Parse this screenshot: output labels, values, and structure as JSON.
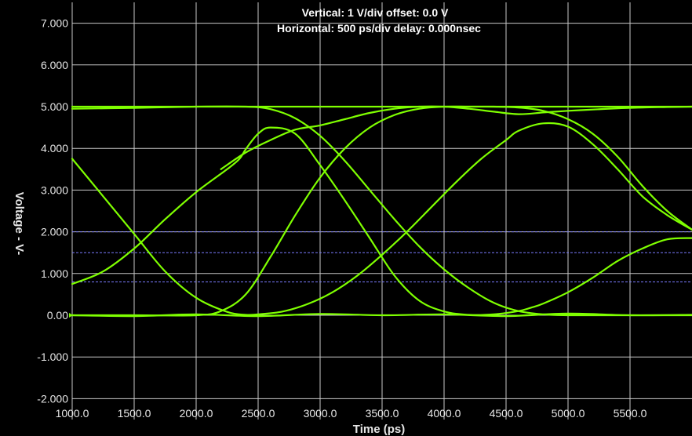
{
  "chart_data": {
    "type": "line",
    "title_lines": [
      "Vertical: 1  V/div  offset: 0.0 V",
      "Horizontal: 500 ps/div  delay: 0.000nsec"
    ],
    "xlabel": "Time  (ps)",
    "ylabel": "Voltage  -  V-",
    "xlim": [
      1000,
      6000
    ],
    "ylim": [
      -2.5,
      7.5
    ],
    "x_ticks": [
      1000,
      1500,
      2000,
      2500,
      3000,
      3500,
      4000,
      4500,
      5000,
      5500
    ],
    "x_tick_labels": [
      "1000.0",
      "1500.0",
      "2000.0",
      "2500.0",
      "3000.0",
      "3500.0",
      "4000.0",
      "4500.0",
      "5000.0",
      "5500.0"
    ],
    "y_ticks": [
      7,
      6,
      5,
      4,
      3,
      2,
      1,
      0,
      -1,
      -2
    ],
    "y_tick_labels": [
      "7.000",
      "6.000",
      "5.000",
      "4.000",
      "3.000",
      "2.000",
      "1.000",
      "0.00",
      "-1.000",
      "-2.000"
    ],
    "grid": true,
    "threshold_levels": [
      2.0,
      1.5,
      0.8
    ],
    "colors": {
      "trace": "#7fff00",
      "grid": "#c8c8c8",
      "threshold": "#7b7bff",
      "background": "#000000"
    },
    "series": [
      {
        "x": [
          1000,
          1250,
          1500,
          1750,
          2000,
          2250,
          2400,
          2500,
          2700,
          2900,
          3100,
          3300,
          3500,
          3700,
          3900,
          4100,
          4300,
          4500,
          4600,
          4800,
          5000,
          5200,
          5400,
          5600,
          5800,
          6000
        ],
        "y": [
          3.75,
          2.85,
          1.95,
          1.05,
          0.42,
          0.08,
          0.01,
          0.02,
          0.09,
          0.27,
          0.55,
          0.95,
          1.45,
          2.0,
          2.6,
          3.2,
          3.75,
          4.2,
          4.42,
          4.6,
          4.52,
          4.1,
          3.5,
          2.85,
          2.4,
          2.05
        ]
      },
      {
        "x": [
          1000,
          1250,
          1500,
          1750,
          2000,
          2250,
          2350,
          2400,
          2500,
          2600,
          2800,
          3000,
          3200,
          3400,
          3600,
          3800,
          4000,
          4200,
          4400,
          4600,
          4700,
          4800,
          5000,
          5200,
          5400,
          5600,
          5800,
          6000
        ],
        "y": [
          0.75,
          1.05,
          1.6,
          2.3,
          2.95,
          3.5,
          3.75,
          3.98,
          4.35,
          4.5,
          4.35,
          3.6,
          2.75,
          1.85,
          0.95,
          0.35,
          0.09,
          0.01,
          0.02,
          0.1,
          0.18,
          0.28,
          0.55,
          0.9,
          1.3,
          1.6,
          1.82,
          1.85
        ]
      },
      {
        "x": [
          1000,
          1500,
          2000,
          2400,
          2600,
          2800,
          3000,
          3200,
          3400,
          3600,
          3800,
          4000,
          4200,
          4400,
          4600,
          4800,
          5000,
          5200,
          5400,
          5600,
          5800,
          6000
        ],
        "y": [
          4.95,
          4.97,
          5.0,
          5.0,
          4.94,
          4.72,
          4.3,
          3.7,
          3.0,
          2.3,
          1.65,
          1.1,
          0.65,
          0.3,
          0.1,
          0.02,
          0.0,
          0.0,
          0.0,
          0.0,
          0.0,
          0.0
        ]
      },
      {
        "x": [
          1000,
          1500,
          2000,
          2200,
          2400,
          2600,
          2800,
          3000,
          3200,
          3400,
          3600,
          3800,
          4000,
          4200,
          4400,
          4600,
          4800,
          5000,
          5200,
          5400,
          5600,
          5800,
          6000
        ],
        "y": [
          0.0,
          0.0,
          0.0,
          0.1,
          0.5,
          1.4,
          2.4,
          3.3,
          4.0,
          4.5,
          4.8,
          4.95,
          5.0,
          5.0,
          5.0,
          4.98,
          4.9,
          4.7,
          4.35,
          3.8,
          3.1,
          2.5,
          2.05
        ]
      },
      {
        "x": [
          2200,
          2400,
          2600,
          2800,
          3000,
          3200,
          3400,
          3600,
          3800,
          4000,
          4200,
          4400,
          4600,
          4800,
          5000,
          5200,
          5400,
          5600,
          5800,
          6000
        ],
        "y": [
          3.5,
          3.9,
          4.2,
          4.45,
          4.55,
          4.7,
          4.85,
          4.95,
          5.0,
          5.0,
          4.95,
          4.88,
          4.82,
          4.86,
          4.9,
          4.93,
          4.96,
          4.98,
          4.99,
          5.0
        ]
      },
      {
        "x": [
          1000,
          2000,
          2500,
          3000,
          3500,
          4000,
          4500,
          5000,
          5500,
          6000
        ],
        "y": [
          5.0,
          5.0,
          5.0,
          5.0,
          5.0,
          5.0,
          5.0,
          5.0,
          5.0,
          5.0
        ]
      },
      {
        "x": [
          1000,
          1500,
          2000,
          2500,
          3000,
          3500,
          4000,
          4500,
          5000,
          5500,
          6000
        ],
        "y": [
          0.0,
          -0.02,
          0.02,
          -0.02,
          0.03,
          0.0,
          0.02,
          -0.02,
          0.04,
          0.0,
          0.01
        ]
      }
    ]
  }
}
